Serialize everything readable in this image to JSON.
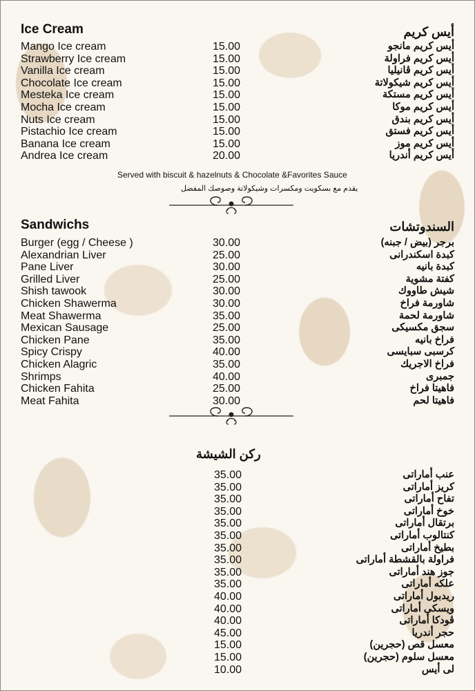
{
  "ice_cream": {
    "title_en": "Ice Cream",
    "title_ar": "أيس كريم",
    "items": [
      {
        "en": "Mango Ice cream",
        "price": "15.00",
        "ar": "أيس كريم مانجو"
      },
      {
        "en": "Strawberry Ice cream",
        "price": "15.00",
        "ar": "أيس كريم فراولة"
      },
      {
        "en": "Vanilla Ice cream",
        "price": "15.00",
        "ar": "أيس كريم ڤانيليا"
      },
      {
        "en": "Chocolate Ice cream",
        "price": "15.00",
        "ar": "أيس كريم شيكولاتة"
      },
      {
        "en": "Mesteka Ice cream",
        "price": "15.00",
        "ar": "أيس كريم مستكة"
      },
      {
        "en": "Mocha Ice cream",
        "price": "15.00",
        "ar": "أيس كريم موكا"
      },
      {
        "en": "Nuts Ice cream",
        "price": "15.00",
        "ar": "أيس كريم بندق"
      },
      {
        "en": "Pistachio Ice cream",
        "price": "15.00",
        "ar": "أيس كريم فستق"
      },
      {
        "en": "Banana Ice cream",
        "price": "15.00",
        "ar": "أيس كريم موز"
      },
      {
        "en": "Andrea Ice cream",
        "price": "20.00",
        "ar": "أيس كريم أندريا"
      }
    ],
    "note_en": "Served with biscuit & hazelnuts & Chocolate &Favorites Sauce",
    "note_ar": "يقدم مع بسكويت ومكسرات وشيكولاتة وصوصك المفضل"
  },
  "sandwiches": {
    "title_en": "Sandwichs",
    "title_ar": "السندوتشات",
    "items": [
      {
        "en": "Burger (egg / Cheese )",
        "price": "30.00",
        "ar": "برجر (بيض / جبنه)"
      },
      {
        "en": "Alexandrian Liver",
        "price": "25.00",
        "ar": "كبدة اسكندرانى"
      },
      {
        "en": "Pane Liver",
        "price": "30.00",
        "ar": "كبدة بانيه"
      },
      {
        "en": "Grilled Liver",
        "price": "25.00",
        "ar": "كفتة مشوية"
      },
      {
        "en": "Shish tawook",
        "price": "30.00",
        "ar": "شيش طاووك"
      },
      {
        "en": "Chicken Shawerma",
        "price": "30.00",
        "ar": "شاورمة فراخ"
      },
      {
        "en": "Meat Shawerma",
        "price": "35.00",
        "ar": "شاورمة لحمة"
      },
      {
        "en": "Mexican Sausage",
        "price": "25.00",
        "ar": "سجق مكسيكى"
      },
      {
        "en": "Chicken Pane",
        "price": "35.00",
        "ar": "فراخ بانيه"
      },
      {
        "en": "Spicy Crispy",
        "price": "40.00",
        "ar": "كرسبى سبايسى"
      },
      {
        "en": "Chicken Alagric",
        "price": "35.00",
        "ar": "فراخ الاجريك"
      },
      {
        "en": "Shrimps",
        "price": "40.00",
        "ar": "جمبرى"
      },
      {
        "en": "Chicken Fahita",
        "price": "25.00",
        "ar": "فاهيتا فراخ"
      },
      {
        "en": "Meat Fahita",
        "price": "30.00",
        "ar": "فاهيتا لحم"
      }
    ]
  },
  "shisha": {
    "title_ar": "ركن الشيشة",
    "items": [
      {
        "price": "35.00",
        "ar": "عنب أماراتى"
      },
      {
        "price": "35.00",
        "ar": "كريز أماراتى"
      },
      {
        "price": "35.00",
        "ar": "تفاح أماراتى"
      },
      {
        "price": "35.00",
        "ar": "خوخ أماراتى"
      },
      {
        "price": "35.00",
        "ar": "برتقال أماراتى"
      },
      {
        "price": "35.00",
        "ar": "كنتالوب أماراتى"
      },
      {
        "price": "35.00",
        "ar": "بطيخ أماراتى"
      },
      {
        "price": "35.00",
        "ar": "فراولة بالقشطة أماراتى"
      },
      {
        "price": "35.00",
        "ar": "جوز هند أماراتى"
      },
      {
        "price": "35.00",
        "ar": "علكه أماراتى"
      },
      {
        "price": "40.00",
        "ar": "ريدبول أماراتى"
      },
      {
        "price": "40.00",
        "ar": "ويسكى أماراتى"
      },
      {
        "price": "40.00",
        "ar": "ڤودكا أماراتى"
      },
      {
        "price": "45.00",
        "ar": "حجر أندريا"
      },
      {
        "price": "15.00",
        "ar": "معسل قص (حجرين)"
      },
      {
        "price": "15.00",
        "ar": "معسل سلوم (حجرين)"
      },
      {
        "price": "10.00",
        "ar": "لى أيس"
      }
    ]
  },
  "colors": {
    "background": "#faf6f0",
    "pattern": "#e6d8c3",
    "text": "#111111"
  }
}
